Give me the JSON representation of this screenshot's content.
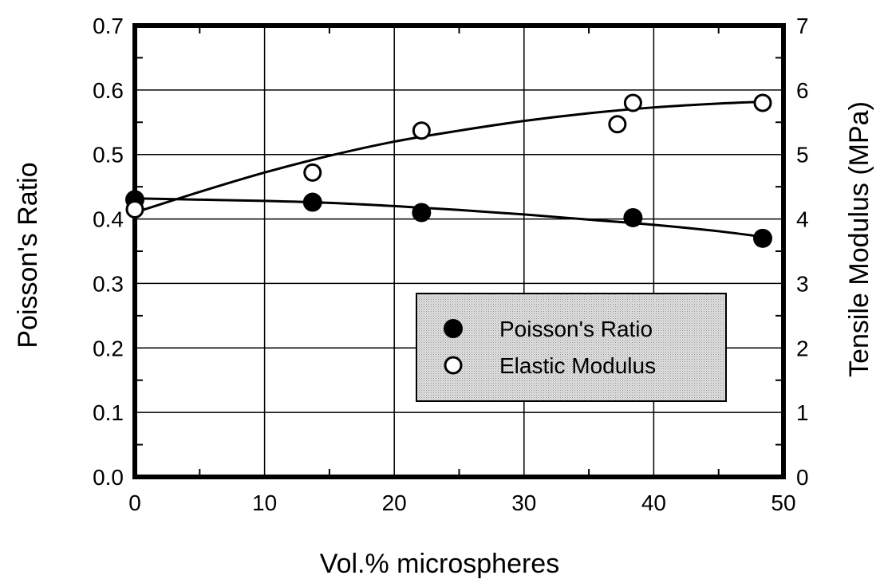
{
  "chart_data": {
    "type": "scatter",
    "title": "",
    "xlabel": "Vol.% microspheres",
    "ylabel": "Poisson's Ratio",
    "y2label": "Tensile Modulus (MPa)",
    "xlim": [
      0,
      50
    ],
    "ylim": [
      0,
      0.7
    ],
    "y2lim": [
      0,
      7
    ],
    "x_ticks": [
      "0",
      "10",
      "20",
      "30",
      "40",
      "50"
    ],
    "y_ticks": [
      "0.0",
      "0.1",
      "0.2",
      "0.3",
      "0.4",
      "0.5",
      "0.6",
      "0.7"
    ],
    "y2_ticks": [
      "0",
      "1",
      "2",
      "3",
      "4",
      "5",
      "6",
      "7"
    ],
    "grid": true,
    "legend_position": "center-right",
    "series": [
      {
        "name": "Poisson's Ratio",
        "axis": "left",
        "marker": "filled-circle",
        "x": [
          0,
          13.7,
          22.1,
          38.4,
          48.4
        ],
        "y": [
          0.43,
          0.426,
          0.41,
          0.402,
          0.37
        ],
        "fit_x": [
          0,
          5,
          10,
          15,
          20,
          25,
          30,
          35,
          40,
          45,
          48.5
        ],
        "fit_y": [
          0.432,
          0.43,
          0.428,
          0.425,
          0.42,
          0.414,
          0.407,
          0.399,
          0.391,
          0.381,
          0.372
        ]
      },
      {
        "name": "Elastic Modulus",
        "axis": "right",
        "marker": "open-circle",
        "x": [
          0,
          13.7,
          22.1,
          37.2,
          38.4,
          48.4
        ],
        "y": [
          4.15,
          4.72,
          5.37,
          5.47,
          5.8,
          5.8
        ],
        "fit_x": [
          0,
          5,
          10,
          15,
          20,
          25,
          30,
          35,
          40,
          45,
          48.5
        ],
        "fit_y": [
          4.1,
          4.42,
          4.72,
          4.98,
          5.2,
          5.37,
          5.52,
          5.64,
          5.73,
          5.79,
          5.82
        ]
      }
    ]
  }
}
